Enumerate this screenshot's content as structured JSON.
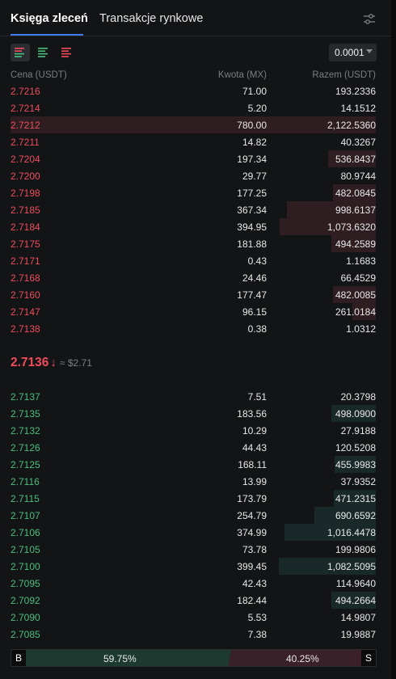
{
  "tabs": {
    "order_book": "Księga zleceń",
    "market_trades": "Transakcje rynkowe"
  },
  "toolbar": {
    "precision": "0.0001"
  },
  "columns": {
    "price": "Cena (USDT)",
    "amount": "Kwota (MX)",
    "total": "Razem (USDT)"
  },
  "asks": [
    {
      "price": "2.7216",
      "amount": "71.00",
      "total": "193.2336",
      "depth": 0.0
    },
    {
      "price": "2.7214",
      "amount": "5.20",
      "total": "14.1512",
      "depth": 0.0
    },
    {
      "price": "2.7212",
      "amount": "780.00",
      "total": "2,122.5360",
      "depth": 1.0
    },
    {
      "price": "2.7211",
      "amount": "14.82",
      "total": "40.3267",
      "depth": 0.0
    },
    {
      "price": "2.7204",
      "amount": "197.34",
      "total": "536.8437",
      "depth": 0.253
    },
    {
      "price": "2.7200",
      "amount": "29.77",
      "total": "80.9744",
      "depth": 0.0
    },
    {
      "price": "2.7198",
      "amount": "177.25",
      "total": "482.0845",
      "depth": 0.227
    },
    {
      "price": "2.7185",
      "amount": "367.34",
      "total": "998.6137",
      "depth": 0.47
    },
    {
      "price": "2.7184",
      "amount": "394.95",
      "total": "1,073.6320",
      "depth": 0.506
    },
    {
      "price": "2.7175",
      "amount": "181.88",
      "total": "494.2589",
      "depth": 0.233
    },
    {
      "price": "2.7171",
      "amount": "0.43",
      "total": "1.1683",
      "depth": 0.0
    },
    {
      "price": "2.7168",
      "amount": "24.46",
      "total": "66.4529",
      "depth": 0.0
    },
    {
      "price": "2.7160",
      "amount": "177.47",
      "total": "482.0085",
      "depth": 0.227
    },
    {
      "price": "2.7147",
      "amount": "96.15",
      "total": "261.0184",
      "depth": 0.123
    },
    {
      "price": "2.7138",
      "amount": "0.38",
      "total": "1.0312",
      "depth": 0.0
    }
  ],
  "mid": {
    "price": "2.7136",
    "arrow": "↓",
    "usd": "≈ $2.71"
  },
  "bids": [
    {
      "price": "2.7137",
      "amount": "7.51",
      "total": "20.3798",
      "depth": 0.0
    },
    {
      "price": "2.7135",
      "amount": "183.56",
      "total": "498.0900",
      "depth": 0.235
    },
    {
      "price": "2.7132",
      "amount": "10.29",
      "total": "27.9188",
      "depth": 0.0
    },
    {
      "price": "2.7126",
      "amount": "44.43",
      "total": "120.5208",
      "depth": 0.0
    },
    {
      "price": "2.7125",
      "amount": "168.11",
      "total": "455.9983",
      "depth": 0.215
    },
    {
      "price": "2.7116",
      "amount": "13.99",
      "total": "37.9352",
      "depth": 0.0
    },
    {
      "price": "2.7115",
      "amount": "173.79",
      "total": "471.2315",
      "depth": 0.222
    },
    {
      "price": "2.7107",
      "amount": "254.79",
      "total": "690.6592",
      "depth": 0.325
    },
    {
      "price": "2.7106",
      "amount": "374.99",
      "total": "1,016.4478",
      "depth": 0.479
    },
    {
      "price": "2.7105",
      "amount": "73.78",
      "total": "199.9806",
      "depth": 0.0
    },
    {
      "price": "2.7100",
      "amount": "399.45",
      "total": "1,082.5095",
      "depth": 0.51
    },
    {
      "price": "2.7095",
      "amount": "42.43",
      "total": "114.9640",
      "depth": 0.0
    },
    {
      "price": "2.7092",
      "amount": "182.44",
      "total": "494.2664",
      "depth": 0.233
    },
    {
      "price": "2.7090",
      "amount": "5.53",
      "total": "14.9807",
      "depth": 0.0
    },
    {
      "price": "2.7085",
      "amount": "7.38",
      "total": "19.9887",
      "depth": 0.0
    }
  ],
  "ratio": {
    "buy_label": "B",
    "sell_label": "S",
    "buy_pct": "59.75%",
    "sell_pct": "40.25%",
    "buy_fraction": 0.5975
  },
  "colors": {
    "ask": "#ef4d5d",
    "bid": "#4cbf7d",
    "accent": "#3d7bf7"
  }
}
